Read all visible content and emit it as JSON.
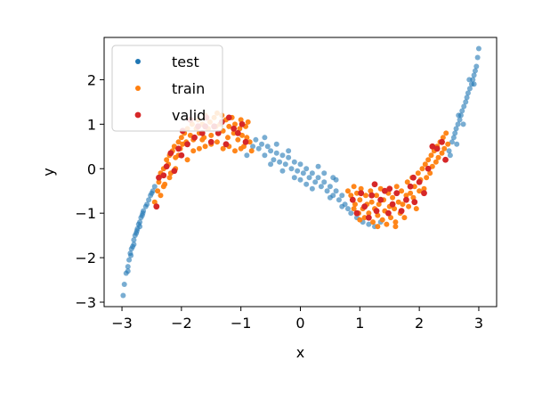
{
  "chart_data": {
    "type": "scatter",
    "title": "",
    "xlabel": "x",
    "ylabel": "y",
    "xlim": [
      -3.3,
      3.3
    ],
    "ylim": [
      -3.1,
      2.95
    ],
    "xticks": [
      -3,
      -2,
      -1,
      0,
      1,
      2,
      3
    ],
    "yticks": [
      -3,
      -2,
      -1,
      0,
      1,
      2
    ],
    "xtick_labels": [
      "−3",
      "−2",
      "−1",
      "0",
      "1",
      "2",
      "3"
    ],
    "ytick_labels": [
      "−3",
      "−2",
      "−1",
      "0",
      "1",
      "2"
    ],
    "grid": false,
    "legend_position": "top-left",
    "curve": "y ≈ 0.5x³ − 1.5x with noise",
    "series": [
      {
        "name": "test",
        "color": "#1f77b4",
        "points": [
          [
            -2.98,
            -2.85
          ],
          [
            -2.96,
            -2.6
          ],
          [
            -2.93,
            -2.35
          ],
          [
            -2.9,
            -2.2
          ],
          [
            -2.88,
            -2.05
          ],
          [
            -2.86,
            -1.9
          ],
          [
            -2.84,
            -1.8
          ],
          [
            -2.82,
            -1.75
          ],
          [
            -2.8,
            -1.6
          ],
          [
            -2.78,
            -1.5
          ],
          [
            -2.76,
            -1.45
          ],
          [
            -2.74,
            -1.35
          ],
          [
            -2.72,
            -1.25
          ],
          [
            -2.7,
            -1.2
          ],
          [
            -2.68,
            -1.1
          ],
          [
            -2.66,
            -1.05
          ],
          [
            -2.64,
            -0.95
          ],
          [
            -2.6,
            -0.85
          ],
          [
            -2.58,
            -0.8
          ],
          [
            -2.55,
            -0.7
          ],
          [
            -2.52,
            -0.6
          ],
          [
            -2.5,
            -0.55
          ],
          [
            -2.48,
            -0.5
          ],
          [
            -2.45,
            -0.4
          ],
          [
            -2.9,
            -2.3
          ],
          [
            -2.85,
            -1.95
          ],
          [
            -2.8,
            -1.7
          ],
          [
            -2.75,
            -1.4
          ],
          [
            -2.7,
            -1.3
          ],
          [
            -2.65,
            -1.0
          ],
          [
            -0.9,
            0.3
          ],
          [
            -0.8,
            0.5
          ],
          [
            -0.75,
            0.65
          ],
          [
            -0.7,
            0.45
          ],
          [
            -0.65,
            0.55
          ],
          [
            -0.6,
            0.3
          ],
          [
            -0.55,
            0.5
          ],
          [
            -0.5,
            0.4
          ],
          [
            -0.45,
            0.2
          ],
          [
            -0.4,
            0.35
          ],
          [
            -0.35,
            0.15
          ],
          [
            -0.3,
            0.3
          ],
          [
            -0.25,
            0.1
          ],
          [
            -0.2,
            0.25
          ],
          [
            -0.15,
            0.0
          ],
          [
            -0.1,
            0.15
          ],
          [
            -0.05,
            -0.05
          ],
          [
            0.0,
            0.1
          ],
          [
            0.05,
            -0.1
          ],
          [
            0.1,
            0.0
          ],
          [
            0.15,
            -0.2
          ],
          [
            0.2,
            -0.1
          ],
          [
            0.25,
            -0.3
          ],
          [
            0.3,
            -0.2
          ],
          [
            0.35,
            -0.4
          ],
          [
            0.4,
            -0.3
          ],
          [
            0.45,
            -0.5
          ],
          [
            0.5,
            -0.4
          ],
          [
            0.55,
            -0.6
          ],
          [
            0.6,
            -0.5
          ],
          [
            0.65,
            -0.7
          ],
          [
            0.7,
            -0.6
          ],
          [
            0.75,
            -0.8
          ],
          [
            0.8,
            -0.9
          ],
          [
            0.85,
            -1.0
          ],
          [
            -0.6,
            0.7
          ],
          [
            -0.4,
            0.55
          ],
          [
            -0.2,
            0.4
          ],
          [
            0.0,
            -0.25
          ],
          [
            0.3,
            0.05
          ],
          [
            0.2,
            -0.45
          ],
          [
            -0.3,
            -0.05
          ],
          [
            0.5,
            -0.65
          ],
          [
            0.6,
            -0.25
          ],
          [
            -0.5,
            0.1
          ],
          [
            0.1,
            -0.35
          ],
          [
            0.4,
            -0.1
          ],
          [
            -0.1,
            -0.2
          ],
          [
            0.7,
            -0.85
          ],
          [
            0.55,
            -0.2
          ],
          [
            0.95,
            -1.1
          ],
          [
            1.05,
            -1.2
          ],
          [
            1.15,
            -1.25
          ],
          [
            1.25,
            -1.3
          ],
          [
            1.35,
            -1.2
          ],
          [
            2.5,
            0.4
          ],
          [
            2.55,
            0.6
          ],
          [
            2.6,
            0.8
          ],
          [
            2.62,
            0.9
          ],
          [
            2.65,
            1.0
          ],
          [
            2.68,
            1.1
          ],
          [
            2.7,
            1.2
          ],
          [
            2.72,
            1.3
          ],
          [
            2.75,
            1.4
          ],
          [
            2.78,
            1.5
          ],
          [
            2.8,
            1.6
          ],
          [
            2.82,
            1.7
          ],
          [
            2.85,
            1.8
          ],
          [
            2.88,
            1.9
          ],
          [
            2.9,
            2.0
          ],
          [
            2.92,
            2.1
          ],
          [
            2.94,
            2.2
          ],
          [
            2.96,
            2.3
          ],
          [
            2.98,
            2.5
          ],
          [
            3.0,
            2.7
          ],
          [
            2.58,
            0.7
          ],
          [
            2.66,
            1.2
          ],
          [
            2.74,
            1.0
          ],
          [
            2.84,
            2.0
          ],
          [
            2.92,
            1.9
          ],
          [
            2.52,
            0.3
          ],
          [
            2.63,
            0.55
          ]
        ]
      },
      {
        "name": "train",
        "color": "#ff7f0e",
        "points": [
          [
            -2.45,
            -0.75
          ],
          [
            -2.4,
            -0.5
          ],
          [
            -2.38,
            -0.3
          ],
          [
            -2.35,
            -0.1
          ],
          [
            -2.3,
            0.0
          ],
          [
            -2.28,
            -0.35
          ],
          [
            -2.25,
            0.2
          ],
          [
            -2.22,
            0.1
          ],
          [
            -2.2,
            0.3
          ],
          [
            -2.18,
            -0.1
          ],
          [
            -2.15,
            0.4
          ],
          [
            -2.12,
            0.5
          ],
          [
            -2.1,
            0.25
          ],
          [
            -2.05,
            0.6
          ],
          [
            -2.02,
            0.45
          ],
          [
            -2.0,
            0.7
          ],
          [
            -1.98,
            0.55
          ],
          [
            -1.95,
            0.8
          ],
          [
            -1.92,
            0.6
          ],
          [
            -1.9,
            0.9
          ],
          [
            -1.85,
            0.75
          ],
          [
            -1.82,
            1.0
          ],
          [
            -1.8,
            0.65
          ],
          [
            -1.75,
            0.9
          ],
          [
            -1.72,
            1.1
          ],
          [
            -1.7,
            0.8
          ],
          [
            -1.65,
            1.0
          ],
          [
            -1.62,
            0.7
          ],
          [
            -1.6,
            1.2
          ],
          [
            -1.55,
            0.9
          ],
          [
            -1.52,
            1.05
          ],
          [
            -1.5,
            0.75
          ],
          [
            -1.45,
            1.15
          ],
          [
            -1.42,
            0.95
          ],
          [
            -1.4,
            0.6
          ],
          [
            -1.35,
            1.0
          ],
          [
            -1.32,
            1.2
          ],
          [
            -1.3,
            0.85
          ],
          [
            -1.25,
            1.1
          ],
          [
            -1.22,
            0.7
          ],
          [
            -1.2,
            0.95
          ],
          [
            -1.15,
            1.15
          ],
          [
            -1.12,
            0.8
          ],
          [
            -1.1,
            1.0
          ],
          [
            -1.05,
            0.65
          ],
          [
            -1.02,
            0.9
          ],
          [
            -1.0,
            1.1
          ],
          [
            -0.98,
            0.75
          ],
          [
            -0.95,
            0.5
          ],
          [
            -0.92,
            0.95
          ],
          [
            -0.9,
            0.7
          ],
          [
            -0.88,
            1.05
          ],
          [
            -0.85,
            0.6
          ],
          [
            -0.82,
            0.4
          ],
          [
            -1.6,
            0.5
          ],
          [
            -1.7,
            0.45
          ],
          [
            -1.8,
            0.4
          ],
          [
            -2.05,
            0.3
          ],
          [
            -2.3,
            -0.4
          ],
          [
            -2.35,
            -0.6
          ],
          [
            -1.3,
            0.45
          ],
          [
            -1.4,
            1.25
          ],
          [
            -1.2,
            0.5
          ],
          [
            -1.1,
            0.4
          ],
          [
            -1.0,
            0.45
          ],
          [
            -1.9,
            0.2
          ],
          [
            -2.1,
            0.0
          ],
          [
            -2.2,
            -0.2
          ],
          [
            -1.5,
            0.55
          ],
          [
            -1.65,
            0.65
          ],
          [
            0.8,
            -0.5
          ],
          [
            0.85,
            -0.6
          ],
          [
            0.9,
            -0.4
          ],
          [
            0.92,
            -0.8
          ],
          [
            0.95,
            -0.55
          ],
          [
            0.98,
            -1.0
          ],
          [
            1.0,
            -0.7
          ],
          [
            1.02,
            -0.45
          ],
          [
            1.05,
            -0.9
          ],
          [
            1.08,
            -1.1
          ],
          [
            1.1,
            -0.6
          ],
          [
            1.12,
            -0.8
          ],
          [
            1.15,
            -1.0
          ],
          [
            1.18,
            -0.5
          ],
          [
            1.2,
            -0.75
          ],
          [
            1.22,
            -1.2
          ],
          [
            1.25,
            -0.9
          ],
          [
            1.28,
            -0.6
          ],
          [
            1.3,
            -1.05
          ],
          [
            1.32,
            -0.8
          ],
          [
            1.35,
            -0.45
          ],
          [
            1.38,
            -1.15
          ],
          [
            1.4,
            -0.7
          ],
          [
            1.42,
            -0.95
          ],
          [
            1.45,
            -1.25
          ],
          [
            1.48,
            -0.55
          ],
          [
            1.5,
            -0.85
          ],
          [
            1.52,
            -1.1
          ],
          [
            1.55,
            -0.65
          ],
          [
            1.58,
            -0.9
          ],
          [
            1.6,
            -1.2
          ],
          [
            1.62,
            -0.4
          ],
          [
            1.65,
            -0.75
          ],
          [
            1.68,
            -1.0
          ],
          [
            1.7,
            -0.5
          ],
          [
            1.72,
            -0.8
          ],
          [
            1.75,
            -1.1
          ],
          [
            1.78,
            -0.6
          ],
          [
            1.8,
            -0.3
          ],
          [
            1.82,
            -0.85
          ],
          [
            1.85,
            -0.55
          ],
          [
            1.88,
            -0.2
          ],
          [
            1.9,
            -0.65
          ],
          [
            1.92,
            -0.4
          ],
          [
            1.95,
            -0.9
          ],
          [
            1.98,
            -0.1
          ],
          [
            2.0,
            -0.5
          ],
          [
            2.02,
            -0.25
          ],
          [
            2.05,
            0.0
          ],
          [
            2.08,
            -0.45
          ],
          [
            2.1,
            0.1
          ],
          [
            2.12,
            -0.2
          ],
          [
            2.15,
            0.2
          ],
          [
            2.18,
            -0.1
          ],
          [
            2.2,
            0.3
          ],
          [
            2.22,
            0.05
          ],
          [
            2.25,
            0.4
          ],
          [
            2.28,
            0.15
          ],
          [
            2.3,
            0.5
          ],
          [
            2.32,
            0.25
          ],
          [
            2.35,
            0.6
          ],
          [
            2.38,
            0.35
          ],
          [
            2.4,
            0.7
          ],
          [
            2.42,
            0.45
          ],
          [
            2.45,
            0.8
          ],
          [
            2.48,
            0.55
          ],
          [
            1.0,
            -1.15
          ],
          [
            1.3,
            -1.3
          ],
          [
            1.6,
            -1.3
          ],
          [
            0.9,
            -0.9
          ]
        ]
      },
      {
        "name": "valid",
        "color": "#d62728",
        "points": [
          [
            -2.42,
            -0.85
          ],
          [
            -2.38,
            -0.2
          ],
          [
            -2.3,
            -0.15
          ],
          [
            -2.25,
            0.05
          ],
          [
            -2.18,
            0.35
          ],
          [
            -2.12,
            -0.05
          ],
          [
            -2.05,
            0.45
          ],
          [
            -1.98,
            0.85
          ],
          [
            -1.9,
            0.55
          ],
          [
            -1.85,
            1.1
          ],
          [
            -1.78,
            0.7
          ],
          [
            -1.72,
            0.95
          ],
          [
            -1.65,
            0.8
          ],
          [
            -1.58,
            1.15
          ],
          [
            -1.5,
            0.6
          ],
          [
            -1.45,
            0.95
          ],
          [
            -1.38,
            0.8
          ],
          [
            -1.32,
            1.05
          ],
          [
            -1.25,
            0.55
          ],
          [
            -1.2,
            1.15
          ],
          [
            -1.12,
            0.9
          ],
          [
            -1.05,
            0.8
          ],
          [
            -0.98,
            1.0
          ],
          [
            -0.92,
            0.6
          ],
          [
            -2.0,
            0.3
          ],
          [
            -1.6,
            0.95
          ],
          [
            0.88,
            -0.7
          ],
          [
            0.95,
            -1.0
          ],
          [
            1.02,
            -0.55
          ],
          [
            1.08,
            -0.85
          ],
          [
            1.15,
            -1.1
          ],
          [
            1.2,
            -0.6
          ],
          [
            1.28,
            -0.95
          ],
          [
            1.35,
            -0.7
          ],
          [
            1.42,
            -0.5
          ],
          [
            1.48,
            -1.0
          ],
          [
            1.55,
            -0.8
          ],
          [
            1.62,
            -0.55
          ],
          [
            1.7,
            -0.95
          ],
          [
            1.78,
            -0.7
          ],
          [
            1.85,
            -0.4
          ],
          [
            1.92,
            -0.75
          ],
          [
            2.0,
            -0.3
          ],
          [
            2.08,
            -0.55
          ],
          [
            2.15,
            0.0
          ],
          [
            2.22,
            0.5
          ],
          [
            2.3,
            0.45
          ],
          [
            2.38,
            0.6
          ],
          [
            2.44,
            0.2
          ],
          [
            1.25,
            -0.35
          ],
          [
            1.5,
            -0.45
          ],
          [
            1.9,
            -0.2
          ]
        ]
      }
    ]
  }
}
